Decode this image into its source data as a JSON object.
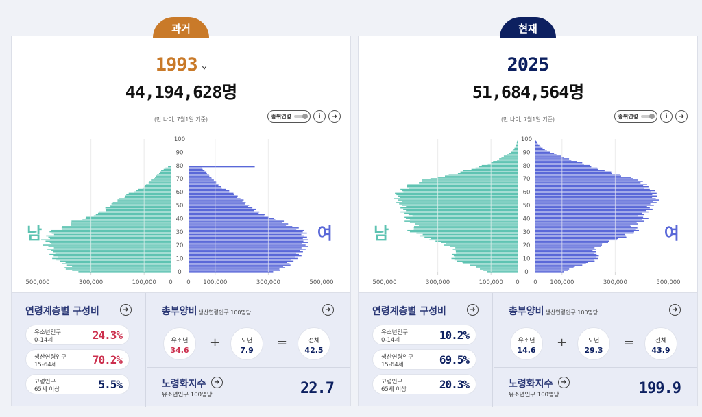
{
  "panels": [
    {
      "id": "past",
      "tab_label": "과거",
      "year": "1993",
      "year_dropdown_icon": "chevron-down-icon",
      "total_population": "44,194,628명",
      "base_note": "(만 나이, 7월1일 기준)",
      "median_toggle_label": "중위연령",
      "info_icon_glyph": "i",
      "male_label": "남",
      "female_label": "여",
      "composition": {
        "title": "연령계층별 구성비",
        "items": [
          {
            "label": "유소년인구",
            "range": "0-14세",
            "value": "24.3%",
            "highlight": true
          },
          {
            "label": "생산연령인구",
            "range": "15-64세",
            "value": "70.2%",
            "highlight": true
          },
          {
            "label": "고령인구",
            "range": "65세 이상",
            "value": "5.5%",
            "highlight": false
          }
        ]
      },
      "dependency": {
        "title": "총부양비",
        "subtitle": "생산연령인구 100명당",
        "youth_label": "유소년",
        "youth_value": "34.6",
        "youth_highlight": true,
        "elderly_label": "노년",
        "elderly_value": "7.9",
        "total_label": "전체",
        "total_value": "42.5",
        "plus": "+",
        "equals": "="
      },
      "aging_index": {
        "title": "노령화지수",
        "subtitle": "유소년인구 100명당",
        "value": "22.7"
      }
    },
    {
      "id": "now",
      "tab_label": "현재",
      "year": "2025",
      "total_population": "51,684,564명",
      "base_note": "(만 나이, 7월1일 기준)",
      "median_toggle_label": "중위연령",
      "info_icon_glyph": "i",
      "male_label": "남",
      "female_label": "여",
      "composition": {
        "title": "연령계층별 구성비",
        "items": [
          {
            "label": "유소년인구",
            "range": "0-14세",
            "value": "10.2%",
            "highlight": false
          },
          {
            "label": "생산연령인구",
            "range": "15-64세",
            "value": "69.5%",
            "highlight": false
          },
          {
            "label": "고령인구",
            "range": "65세 이상",
            "value": "20.3%",
            "highlight": false
          }
        ]
      },
      "dependency": {
        "title": "총부양비",
        "subtitle": "생산연령인구 100명당",
        "youth_label": "유소년",
        "youth_value": "14.6",
        "youth_highlight": false,
        "elderly_label": "노년",
        "elderly_value": "29.3",
        "total_label": "전체",
        "total_value": "43.9",
        "plus": "+",
        "equals": "="
      },
      "aging_index": {
        "title": "노령화지수",
        "subtitle": "유소년인구 100명당",
        "value": "199.9"
      }
    }
  ],
  "colors": {
    "past_accent": "#c97a29",
    "now_accent": "#0d2060",
    "male_bar": "#5ec3b2",
    "female_bar": "#5a68d8",
    "highlight_red": "#cc2f4d"
  },
  "chart_data": [
    {
      "type": "bar",
      "orientation": "horizontal-population-pyramid",
      "year": "1993",
      "age_ticks": [
        "0",
        "10",
        "20",
        "30",
        "40",
        "50",
        "60",
        "70",
        "80",
        "90",
        "100"
      ],
      "x_ticks_left": [
        "500,000",
        "300,000",
        "100,000",
        "0"
      ],
      "x_ticks_right": [
        "0",
        "100,000",
        "300,000",
        "500,000"
      ],
      "xlim": [
        0,
        500000
      ],
      "age_range": [
        0,
        100
      ],
      "grid": true,
      "male_anchors": [
        [
          0,
          360000
        ],
        [
          2,
          390000
        ],
        [
          4,
          380000
        ],
        [
          6,
          400000
        ],
        [
          8,
          420000
        ],
        [
          10,
          430000
        ],
        [
          12,
          440000
        ],
        [
          14,
          450000
        ],
        [
          16,
          445000
        ],
        [
          18,
          450000
        ],
        [
          20,
          470000
        ],
        [
          22,
          460000
        ],
        [
          24,
          470000
        ],
        [
          26,
          460000
        ],
        [
          28,
          455000
        ],
        [
          30,
          450000
        ],
        [
          32,
          420000
        ],
        [
          34,
          400000
        ],
        [
          36,
          380000
        ],
        [
          38,
          360000
        ],
        [
          40,
          320000
        ],
        [
          42,
          300000
        ],
        [
          44,
          270000
        ],
        [
          46,
          250000
        ],
        [
          48,
          240000
        ],
        [
          50,
          230000
        ],
        [
          52,
          210000
        ],
        [
          54,
          200000
        ],
        [
          56,
          180000
        ],
        [
          58,
          165000
        ],
        [
          60,
          140000
        ],
        [
          62,
          120000
        ],
        [
          64,
          100000
        ],
        [
          66,
          90000
        ],
        [
          68,
          80000
        ],
        [
          70,
          65000
        ],
        [
          72,
          55000
        ],
        [
          74,
          45000
        ],
        [
          76,
          35000
        ],
        [
          78,
          20000
        ],
        [
          79,
          10000
        ],
        [
          80,
          0
        ]
      ],
      "female_anchors": [
        [
          0,
          330000
        ],
        [
          2,
          350000
        ],
        [
          4,
          360000
        ],
        [
          6,
          380000
        ],
        [
          8,
          390000
        ],
        [
          10,
          400000
        ],
        [
          12,
          410000
        ],
        [
          14,
          420000
        ],
        [
          16,
          430000
        ],
        [
          18,
          430000
        ],
        [
          20,
          440000
        ],
        [
          22,
          445000
        ],
        [
          24,
          440000
        ],
        [
          26,
          430000
        ],
        [
          28,
          440000
        ],
        [
          30,
          440000
        ],
        [
          32,
          410000
        ],
        [
          34,
          390000
        ],
        [
          36,
          370000
        ],
        [
          38,
          350000
        ],
        [
          40,
          310000
        ],
        [
          42,
          295000
        ],
        [
          44,
          270000
        ],
        [
          46,
          250000
        ],
        [
          48,
          240000
        ],
        [
          50,
          225000
        ],
        [
          52,
          210000
        ],
        [
          54,
          200000
        ],
        [
          56,
          190000
        ],
        [
          58,
          175000
        ],
        [
          60,
          155000
        ],
        [
          62,
          140000
        ],
        [
          64,
          120000
        ],
        [
          66,
          110000
        ],
        [
          68,
          100000
        ],
        [
          70,
          90000
        ],
        [
          72,
          80000
        ],
        [
          74,
          70000
        ],
        [
          76,
          60000
        ],
        [
          78,
          50000
        ],
        [
          79,
          255000
        ],
        [
          80,
          0
        ]
      ]
    },
    {
      "type": "bar",
      "orientation": "horizontal-population-pyramid",
      "year": "2025",
      "age_ticks": [
        "0",
        "10",
        "20",
        "30",
        "40",
        "50",
        "60",
        "70",
        "80",
        "90",
        "100"
      ],
      "x_ticks_left": [
        "500,000",
        "300,000",
        "100,000",
        "0"
      ],
      "x_ticks_right": [
        "0",
        "100,000",
        "300,000",
        "500,000"
      ],
      "xlim": [
        0,
        500000
      ],
      "age_range": [
        0,
        100
      ],
      "grid": true,
      "male_anchors": [
        [
          0,
          120000
        ],
        [
          2,
          140000
        ],
        [
          4,
          160000
        ],
        [
          6,
          200000
        ],
        [
          8,
          230000
        ],
        [
          10,
          240000
        ],
        [
          12,
          240000
        ],
        [
          14,
          240000
        ],
        [
          16,
          230000
        ],
        [
          18,
          240000
        ],
        [
          20,
          270000
        ],
        [
          22,
          290000
        ],
        [
          24,
          320000
        ],
        [
          26,
          350000
        ],
        [
          28,
          370000
        ],
        [
          30,
          400000
        ],
        [
          32,
          400000
        ],
        [
          34,
          380000
        ],
        [
          36,
          390000
        ],
        [
          38,
          410000
        ],
        [
          40,
          420000
        ],
        [
          42,
          410000
        ],
        [
          44,
          420000
        ],
        [
          46,
          430000
        ],
        [
          48,
          430000
        ],
        [
          50,
          440000
        ],
        [
          52,
          440000
        ],
        [
          54,
          450000
        ],
        [
          56,
          460000
        ],
        [
          58,
          450000
        ],
        [
          60,
          440000
        ],
        [
          62,
          430000
        ],
        [
          64,
          420000
        ],
        [
          66,
          400000
        ],
        [
          68,
          360000
        ],
        [
          70,
          340000
        ],
        [
          72,
          270000
        ],
        [
          74,
          230000
        ],
        [
          76,
          200000
        ],
        [
          78,
          160000
        ],
        [
          80,
          130000
        ],
        [
          82,
          100000
        ],
        [
          84,
          80000
        ],
        [
          86,
          60000
        ],
        [
          88,
          40000
        ],
        [
          90,
          25000
        ],
        [
          92,
          15000
        ],
        [
          94,
          8000
        ],
        [
          96,
          4000
        ],
        [
          98,
          2000
        ],
        [
          100,
          0
        ]
      ],
      "female_anchors": [
        [
          0,
          110000
        ],
        [
          2,
          130000
        ],
        [
          4,
          150000
        ],
        [
          6,
          190000
        ],
        [
          8,
          220000
        ],
        [
          10,
          230000
        ],
        [
          12,
          230000
        ],
        [
          14,
          230000
        ],
        [
          16,
          220000
        ],
        [
          18,
          225000
        ],
        [
          20,
          250000
        ],
        [
          22,
          270000
        ],
        [
          24,
          300000
        ],
        [
          26,
          330000
        ],
        [
          28,
          350000
        ],
        [
          30,
          380000
        ],
        [
          32,
          380000
        ],
        [
          34,
          360000
        ],
        [
          36,
          380000
        ],
        [
          38,
          400000
        ],
        [
          40,
          410000
        ],
        [
          42,
          400000
        ],
        [
          44,
          410000
        ],
        [
          46,
          420000
        ],
        [
          48,
          430000
        ],
        [
          50,
          440000
        ],
        [
          52,
          445000
        ],
        [
          54,
          450000
        ],
        [
          56,
          455000
        ],
        [
          58,
          450000
        ],
        [
          60,
          440000
        ],
        [
          62,
          430000
        ],
        [
          64,
          420000
        ],
        [
          66,
          410000
        ],
        [
          68,
          390000
        ],
        [
          70,
          380000
        ],
        [
          72,
          330000
        ],
        [
          74,
          290000
        ],
        [
          76,
          260000
        ],
        [
          78,
          230000
        ],
        [
          80,
          200000
        ],
        [
          82,
          170000
        ],
        [
          84,
          140000
        ],
        [
          86,
          110000
        ],
        [
          88,
          80000
        ],
        [
          90,
          55000
        ],
        [
          92,
          35000
        ],
        [
          94,
          20000
        ],
        [
          96,
          10000
        ],
        [
          98,
          4000
        ],
        [
          100,
          0
        ]
      ]
    }
  ]
}
